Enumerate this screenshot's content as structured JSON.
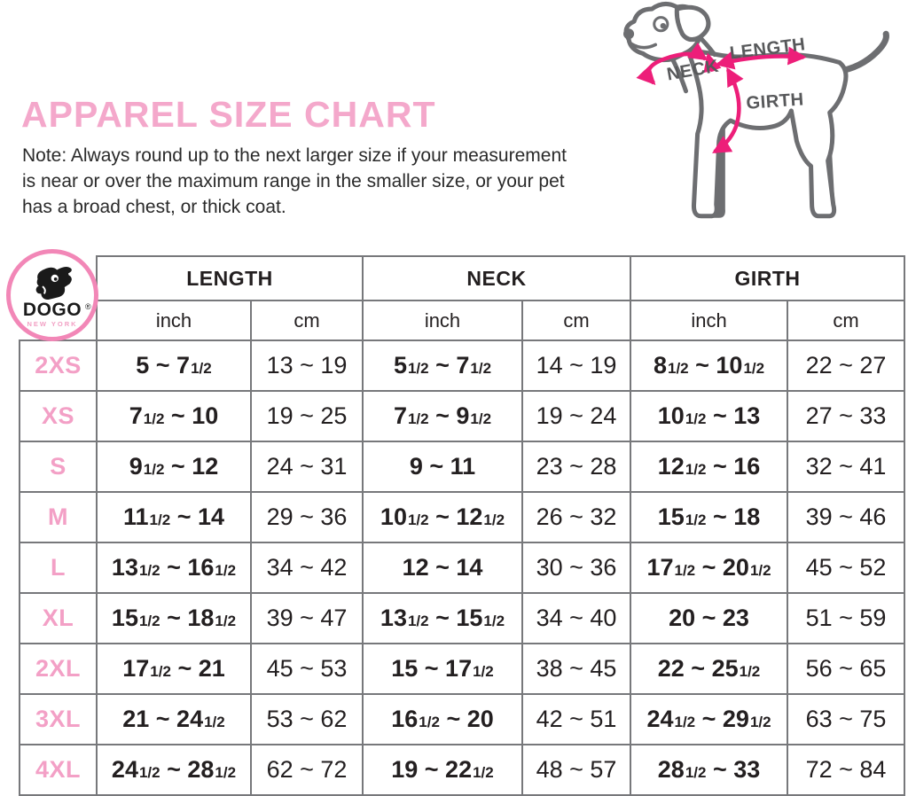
{
  "page": {
    "title": "APPAREL SIZE CHART",
    "note_lines": [
      "Note: Always round up to the next larger size if your measurement",
      "is near or over the maximum range in the smaller size, or your pet",
      "has a broad chest, or thick coat."
    ]
  },
  "colors": {
    "title_pink": "#f4a8cb",
    "size_label_pink": "#f3a0c6",
    "logo_ring_pink": "#f287b7",
    "arrow_pink": "#ed1e79",
    "dog_outline_gray": "#6d6e71",
    "diagram_label_gray": "#58595b",
    "table_border_gray": "#77787b",
    "text_black": "#231f20"
  },
  "logo": {
    "brand": "DOGO",
    "registered": "®",
    "city": "NEW YORK",
    "icon": "dog-head-icon"
  },
  "diagram": {
    "labels": {
      "neck": "NECK",
      "length": "LENGTH",
      "girth": "GIRTH"
    }
  },
  "table": {
    "groups": [
      "LENGTH",
      "NECK",
      "GIRTH"
    ],
    "units": [
      "inch",
      "cm"
    ],
    "rows": [
      {
        "size": "2XS",
        "length_inch": "5 ~ 7 1/2",
        "length_cm": "13 ~ 19",
        "neck_inch": "5 1/2 ~ 7 1/2",
        "neck_cm": "14 ~ 19",
        "girth_inch": "8 1/2 ~ 10 1/2",
        "girth_cm": "22 ~ 27"
      },
      {
        "size": "XS",
        "length_inch": "7 1/2 ~ 10",
        "length_cm": "19 ~ 25",
        "neck_inch": "7 1/2 ~ 9 1/2",
        "neck_cm": "19 ~ 24",
        "girth_inch": "10 1/2 ~ 13",
        "girth_cm": "27 ~ 33"
      },
      {
        "size": "S",
        "length_inch": "9 1/2 ~ 12",
        "length_cm": "24 ~ 31",
        "neck_inch": "9 ~ 11",
        "neck_cm": "23 ~ 28",
        "girth_inch": "12 1/2 ~ 16",
        "girth_cm": "32 ~ 41"
      },
      {
        "size": "M",
        "length_inch": "11 1/2 ~ 14",
        "length_cm": "29 ~ 36",
        "neck_inch": "10 1/2 ~ 12 1/2",
        "neck_cm": "26 ~ 32",
        "girth_inch": "15 1/2 ~ 18",
        "girth_cm": "39 ~ 46"
      },
      {
        "size": "L",
        "length_inch": "13 1/2 ~ 16 1/2",
        "length_cm": "34 ~ 42",
        "neck_inch": "12 ~ 14",
        "neck_cm": "30 ~ 36",
        "girth_inch": "17 1/2 ~ 20 1/2",
        "girth_cm": "45 ~ 52"
      },
      {
        "size": "XL",
        "length_inch": "15 1/2 ~ 18 1/2",
        "length_cm": "39 ~ 47",
        "neck_inch": "13 1/2 ~ 15 1/2",
        "neck_cm": "34 ~ 40",
        "girth_inch": "20 ~ 23",
        "girth_cm": "51 ~ 59"
      },
      {
        "size": "2XL",
        "length_inch": "17 1/2 ~ 21",
        "length_cm": "45 ~ 53",
        "neck_inch": "15 ~ 17 1/2",
        "neck_cm": "38 ~ 45",
        "girth_inch": "22 ~ 25 1/2",
        "girth_cm": "56 ~ 65"
      },
      {
        "size": "3XL",
        "length_inch": "21 ~ 24 1/2",
        "length_cm": "53 ~ 62",
        "neck_inch": "16 1/2 ~ 20",
        "neck_cm": "42 ~ 51",
        "girth_inch": "24 1/2 ~ 29 1/2",
        "girth_cm": "63 ~ 75"
      },
      {
        "size": "4XL",
        "length_inch": "24 1/2 ~ 28 1/2",
        "length_cm": "62 ~ 72",
        "neck_inch": "19 ~ 22 1/2",
        "neck_cm": "48 ~ 57",
        "girth_inch": "28 1/2 ~ 33",
        "girth_cm": "72 ~ 84"
      }
    ]
  }
}
